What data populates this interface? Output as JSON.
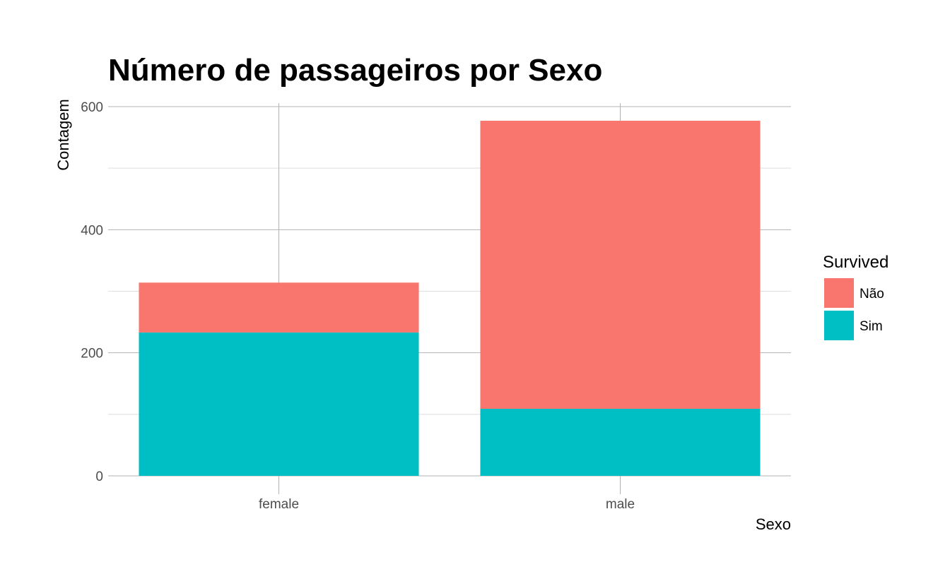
{
  "chart_data": {
    "type": "bar",
    "stacked": true,
    "title": "Número de passageiros por Sexo",
    "xlabel": "Sexo",
    "ylabel": "Contagem",
    "categories": [
      "female",
      "male"
    ],
    "series": [
      {
        "name": "Não",
        "values": [
          81,
          468
        ],
        "color": "#F8766D"
      },
      {
        "name": "Sim",
        "values": [
          233,
          109
        ],
        "color": "#00BFC4"
      }
    ],
    "stack_order_bottom_to_top": [
      "Sim",
      "Não"
    ],
    "ylim": [
      0,
      610
    ],
    "yticks": [
      0,
      200,
      400,
      600
    ],
    "grid": true,
    "legend": {
      "title": "Survived",
      "placement": "right",
      "items": [
        "Não",
        "Sim"
      ]
    },
    "colors": {
      "grid_major": "#b3b3b3",
      "grid_minor": "#dedede",
      "tick_text": "#4d4d4d"
    }
  }
}
